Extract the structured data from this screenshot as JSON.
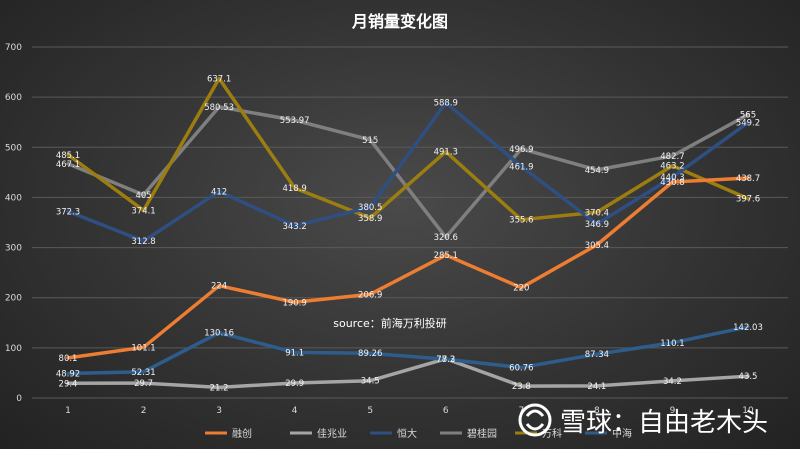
{
  "chart_data": {
    "type": "line",
    "title": "月销量变化图",
    "xlabel": "",
    "ylabel": "",
    "ylim": [
      0,
      700
    ],
    "y_ticks": [
      0,
      100,
      200,
      300,
      400,
      500,
      600,
      700
    ],
    "categories": [
      "1",
      "2",
      "3",
      "4",
      "5",
      "6",
      "7",
      "8",
      "9",
      "10"
    ],
    "grid": true,
    "legend_position": "bottom",
    "annotation": "source：前海万利投研",
    "series": [
      {
        "name": "融创",
        "color": "#ed7d31",
        "values": [
          80.1,
          101.1,
          224,
          190.9,
          206.9,
          285.1,
          220,
          305.4,
          430.8,
          438.7
        ],
        "labels": [
          "80.1",
          "101.1",
          "224",
          "190.9",
          "206.9",
          "285.1",
          "220",
          "305.4",
          "430.8",
          "438.7"
        ]
      },
      {
        "name": "佳兆业",
        "color": "#a5a5a5",
        "values": [
          29.4,
          29.7,
          21.2,
          29.9,
          34.5,
          78.2,
          23.8,
          24.1,
          34.2,
          43.5
        ],
        "labels": [
          "29.4",
          "29.7",
          "21.2",
          "29.9",
          "34.5",
          "78.2",
          "23.8",
          "24.1",
          "34.2",
          "43.5"
        ]
      },
      {
        "name": "恒大",
        "color": "#2f4f82",
        "values": [
          372.3,
          312.8,
          412,
          343.2,
          380.5,
          588.9,
          461.9,
          346.9,
          440.3,
          549.2
        ],
        "labels": [
          "372.3",
          "312.8",
          "412",
          "343.2",
          "380.5",
          "588.9",
          "461.9",
          "346.9",
          "440.3",
          "549.2"
        ]
      },
      {
        "name": "碧桂园",
        "color": "#7f7f7f",
        "values": [
          467.1,
          405,
          580.53,
          553.97,
          515,
          320.6,
          496.9,
          454.9,
          482.7,
          565
        ],
        "labels": [
          "467.1",
          "405",
          "580.53",
          "553.97",
          "515",
          "320.6",
          "496.9",
          "454.9",
          "482.7",
          "565"
        ]
      },
      {
        "name": "万科",
        "color": "#9c7d10",
        "values": [
          485.1,
          374.1,
          637.1,
          418.9,
          358.9,
          491.3,
          355.6,
          370.4,
          463.2,
          397.6
        ],
        "labels": [
          "485.1",
          "374.1",
          "637.1",
          "418.9",
          "358.9",
          "491.3",
          "355.6",
          "370.4",
          "463.2",
          "397.6"
        ]
      },
      {
        "name": "中海",
        "color": "#2e5d8c",
        "values": [
          48.92,
          52.31,
          130.16,
          91.1,
          89.26,
          77.3,
          60.76,
          87.34,
          110.1,
          142.03
        ],
        "labels": [
          "48.92",
          "52.31",
          "130.16",
          "91.1",
          "89.26",
          "77.3",
          "60.76",
          "87.34",
          "110.1",
          "142.03"
        ]
      }
    ]
  },
  "watermark": {
    "text": "雪球：自由老木头"
  }
}
